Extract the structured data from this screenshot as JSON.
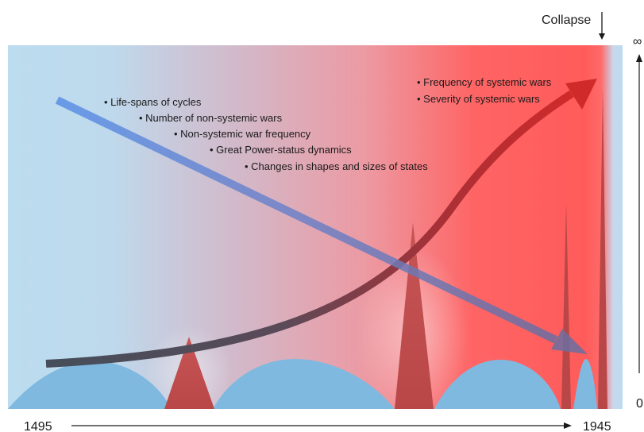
{
  "labels": {
    "collapse": "Collapse",
    "axis_top": "∞",
    "axis_bottom": "0",
    "year_start": "1495",
    "year_end": "1945"
  },
  "decreasing_trends": [
    "• Life-spans of cycles",
    "• Number of non-systemic wars",
    "• Non-systemic war frequency",
    "• Great Power-status dynamics",
    "• Changes in shapes and sizes of states"
  ],
  "increasing_trends": [
    "• Frequency of systemic wars",
    "• Severity of systemic wars"
  ],
  "colors": {
    "background_blue": "#bcdcef",
    "background_red": "#ff5b5b",
    "wave_blue": "#7fb9e0",
    "war_spike_red": "#c0504d",
    "decreasing_arrow": "#5b8fe6",
    "increasing_arrow": "#d02a2a"
  }
}
